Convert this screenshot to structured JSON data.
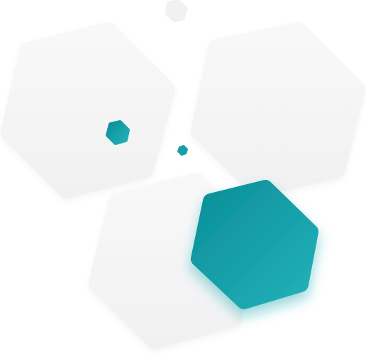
{
  "colors": {
    "background": "#ffffff",
    "light_hexagon_top": "#f7f7f8",
    "light_hexagon_bottom": "#f1f1f2",
    "teal_dark": "#0b8f98",
    "teal_light": "#22b0b8",
    "teal_shadow": "#19a7ad"
  },
  "shapes": {
    "large_light_hexagons": 3,
    "small_light_hexagons": 1,
    "teal_hexagons": 3
  }
}
